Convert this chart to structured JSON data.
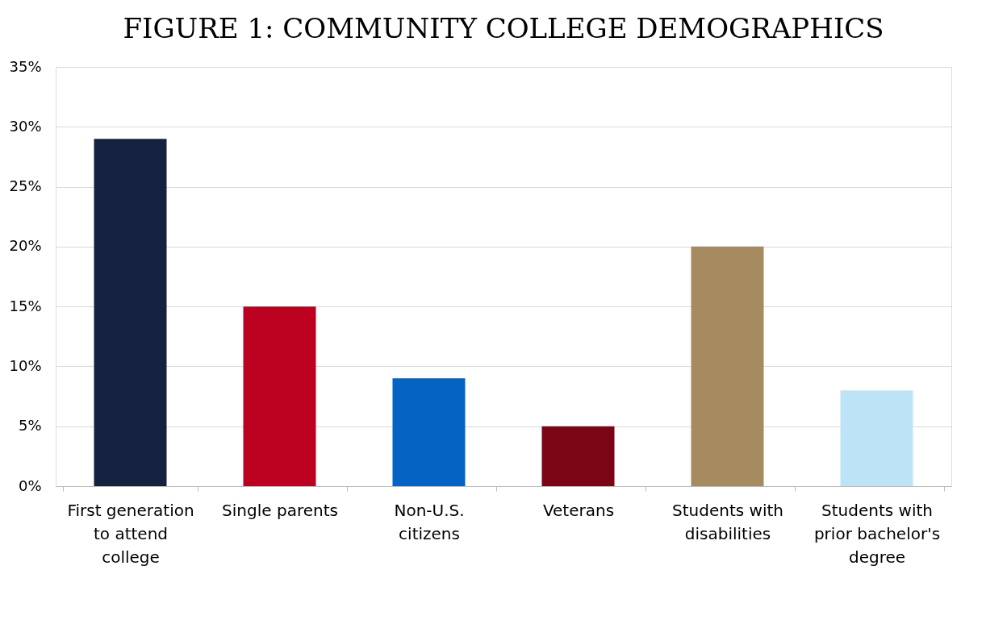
{
  "chart_data": {
    "type": "bar",
    "title": "FIGURE 1: COMMUNITY COLLEGE DEMOGRAPHICS",
    "categories": [
      "First generation to attend college",
      "Single parents",
      "Non-U.S. citizens",
      "Veterans",
      "Students with disabilities",
      "Students with prior bachelor's degree"
    ],
    "values": [
      29,
      15,
      9,
      5,
      20,
      8
    ],
    "colors": [
      "#14213f",
      "#bb0020",
      "#0463c3",
      "#7b0415",
      "#a58b5f",
      "#bde3f7"
    ],
    "ylim": [
      0,
      35
    ],
    "yticks": [
      {
        "value": 0,
        "label": "0%"
      },
      {
        "value": 5,
        "label": "5%"
      },
      {
        "value": 10,
        "label": "10%"
      },
      {
        "value": 15,
        "label": "15%"
      },
      {
        "value": 20,
        "label": "20%"
      },
      {
        "value": 25,
        "label": "25%"
      },
      {
        "value": 30,
        "label": "30%"
      },
      {
        "value": 35,
        "label": "35%"
      }
    ],
    "grid": "y",
    "legend": false
  }
}
